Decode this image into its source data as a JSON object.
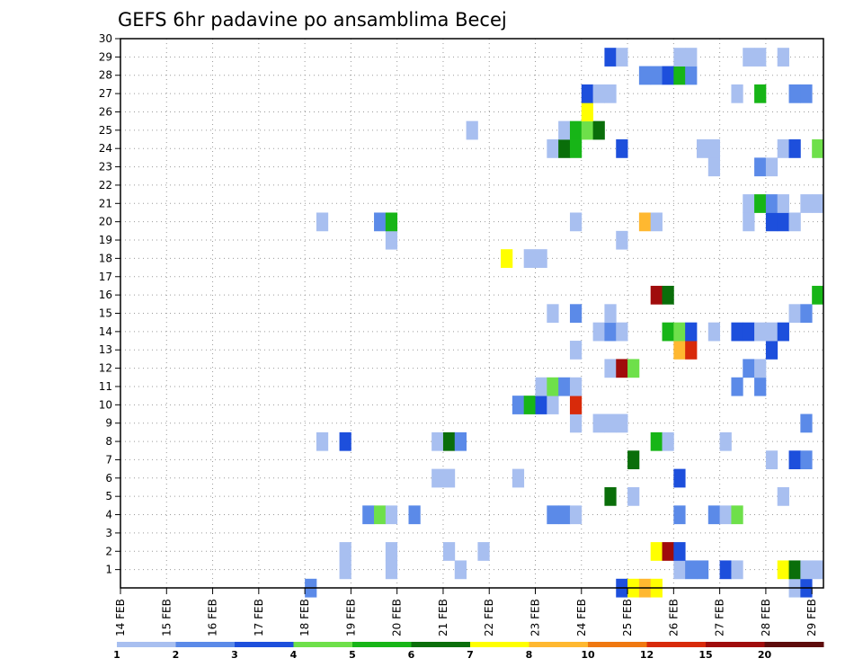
{
  "chart_data": {
    "type": "heatmap",
    "title": "GEFS 6hr padavine po ansamblima Becej",
    "xlabel": "",
    "ylabel": "",
    "x_labels": [
      "14 FEB",
      "15 FEB",
      "16 FEB",
      "17 FEB",
      "18 FEB",
      "19 FEB",
      "20 FEB",
      "21 FEB",
      "22 FEB",
      "23 FEB",
      "24 FEB",
      "25 FEB",
      "26 FEB",
      "27 FEB",
      "28 FEB",
      "29 FEB"
    ],
    "y_labels": [
      "1",
      "2",
      "3",
      "4",
      "5",
      "6",
      "7",
      "8",
      "9",
      "10",
      "11",
      "12",
      "13",
      "14",
      "15",
      "16",
      "17",
      "18",
      "19",
      "20",
      "21",
      "22",
      "23",
      "24",
      "25",
      "26",
      "27",
      "28",
      "29",
      "30"
    ],
    "xlim": [
      0,
      61
    ],
    "ylim": [
      0,
      30
    ],
    "x_unit": "6h steps since 14 FEB 00z",
    "grid": true,
    "colorbar": {
      "labels": [
        "1",
        "2",
        "3",
        "4",
        "5",
        "6",
        "7",
        "8",
        "10",
        "12",
        "15",
        "20"
      ],
      "colors": [
        "#a8bff0",
        "#5b8ae8",
        "#1d4fdc",
        "#6ee04a",
        "#17b517",
        "#0a6e0a",
        "#ffff00",
        "#ffb830",
        "#f07810",
        "#d82a0a",
        "#a00c0c",
        "#5e0c0c"
      ]
    },
    "cells": [
      {
        "x": 16.5,
        "y": 0,
        "c": 1
      },
      {
        "x": 43.5,
        "y": 0,
        "c": 2
      },
      {
        "x": 44.5,
        "y": 0,
        "c": 6
      },
      {
        "x": 45.5,
        "y": 0,
        "c": 7
      },
      {
        "x": 46.5,
        "y": 0,
        "c": 6
      },
      {
        "x": 58.5,
        "y": 0,
        "c": 0
      },
      {
        "x": 59.5,
        "y": 0,
        "c": 2
      },
      {
        "x": 19.5,
        "y": 1,
        "c": 0
      },
      {
        "x": 23.5,
        "y": 1,
        "c": 0
      },
      {
        "x": 29.5,
        "y": 1,
        "c": 0
      },
      {
        "x": 48.5,
        "y": 1,
        "c": 0
      },
      {
        "x": 49.5,
        "y": 1,
        "c": 1
      },
      {
        "x": 50.5,
        "y": 1,
        "c": 1
      },
      {
        "x": 52.5,
        "y": 1,
        "c": 2
      },
      {
        "x": 53.5,
        "y": 1,
        "c": 0
      },
      {
        "x": 57.5,
        "y": 1,
        "c": 6
      },
      {
        "x": 58.5,
        "y": 1,
        "c": 5
      },
      {
        "x": 59.5,
        "y": 1,
        "c": 0
      },
      {
        "x": 60.5,
        "y": 1,
        "c": 0
      },
      {
        "x": 19.5,
        "y": 2,
        "c": 0
      },
      {
        "x": 23.5,
        "y": 2,
        "c": 0
      },
      {
        "x": 28.5,
        "y": 2,
        "c": 0
      },
      {
        "x": 31.5,
        "y": 2,
        "c": 0
      },
      {
        "x": 46.5,
        "y": 2,
        "c": 6
      },
      {
        "x": 47.5,
        "y": 2,
        "c": 10
      },
      {
        "x": 48.5,
        "y": 2,
        "c": 2
      },
      {
        "x": 21.5,
        "y": 4,
        "c": 1
      },
      {
        "x": 22.5,
        "y": 4,
        "c": 3
      },
      {
        "x": 23.5,
        "y": 4,
        "c": 0
      },
      {
        "x": 25.5,
        "y": 4,
        "c": 1
      },
      {
        "x": 37.5,
        "y": 4,
        "c": 1
      },
      {
        "x": 38.5,
        "y": 4,
        "c": 1
      },
      {
        "x": 39.5,
        "y": 4,
        "c": 0
      },
      {
        "x": 48.5,
        "y": 4,
        "c": 1
      },
      {
        "x": 51.5,
        "y": 4,
        "c": 1
      },
      {
        "x": 52.5,
        "y": 4,
        "c": 0
      },
      {
        "x": 53.5,
        "y": 4,
        "c": 3
      },
      {
        "x": 42.5,
        "y": 5,
        "c": 5
      },
      {
        "x": 44.5,
        "y": 5,
        "c": 0
      },
      {
        "x": 57.5,
        "y": 5,
        "c": 0
      },
      {
        "x": 27.5,
        "y": 6,
        "c": 0
      },
      {
        "x": 28.5,
        "y": 6,
        "c": 0
      },
      {
        "x": 34.5,
        "y": 6,
        "c": 0
      },
      {
        "x": 48.5,
        "y": 6,
        "c": 2
      },
      {
        "x": 44.5,
        "y": 7,
        "c": 5
      },
      {
        "x": 56.5,
        "y": 7,
        "c": 0
      },
      {
        "x": 58.5,
        "y": 7,
        "c": 2
      },
      {
        "x": 59.5,
        "y": 7,
        "c": 1
      },
      {
        "x": 17.5,
        "y": 8,
        "c": 0
      },
      {
        "x": 19.5,
        "y": 8,
        "c": 2
      },
      {
        "x": 27.5,
        "y": 8,
        "c": 0
      },
      {
        "x": 28.5,
        "y": 8,
        "c": 5
      },
      {
        "x": 29.5,
        "y": 8,
        "c": 1
      },
      {
        "x": 46.5,
        "y": 8,
        "c": 4
      },
      {
        "x": 47.5,
        "y": 8,
        "c": 0
      },
      {
        "x": 52.5,
        "y": 8,
        "c": 0
      },
      {
        "x": 39.5,
        "y": 9,
        "c": 0
      },
      {
        "x": 41.5,
        "y": 9,
        "c": 0
      },
      {
        "x": 42.5,
        "y": 9,
        "c": 0
      },
      {
        "x": 43.5,
        "y": 9,
        "c": 0
      },
      {
        "x": 59.5,
        "y": 9,
        "c": 1
      },
      {
        "x": 34.5,
        "y": 10,
        "c": 1
      },
      {
        "x": 35.5,
        "y": 10,
        "c": 4
      },
      {
        "x": 36.5,
        "y": 10,
        "c": 2
      },
      {
        "x": 37.5,
        "y": 10,
        "c": 0
      },
      {
        "x": 39.5,
        "y": 10,
        "c": 9
      },
      {
        "x": 36.5,
        "y": 11,
        "c": 0
      },
      {
        "x": 37.5,
        "y": 11,
        "c": 3
      },
      {
        "x": 38.5,
        "y": 11,
        "c": 1
      },
      {
        "x": 39.5,
        "y": 11,
        "c": 0
      },
      {
        "x": 53.5,
        "y": 11,
        "c": 1
      },
      {
        "x": 55.5,
        "y": 11,
        "c": 1
      },
      {
        "x": 42.5,
        "y": 12,
        "c": 0
      },
      {
        "x": 43.5,
        "y": 12,
        "c": 10
      },
      {
        "x": 44.5,
        "y": 12,
        "c": 3
      },
      {
        "x": 54.5,
        "y": 12,
        "c": 1
      },
      {
        "x": 55.5,
        "y": 12,
        "c": 0
      },
      {
        "x": 39.5,
        "y": 13,
        "c": 0
      },
      {
        "x": 48.5,
        "y": 13,
        "c": 7
      },
      {
        "x": 49.5,
        "y": 13,
        "c": 9
      },
      {
        "x": 56.5,
        "y": 13,
        "c": 2
      },
      {
        "x": 41.5,
        "y": 14,
        "c": 0
      },
      {
        "x": 42.5,
        "y": 14,
        "c": 1
      },
      {
        "x": 43.5,
        "y": 14,
        "c": 0
      },
      {
        "x": 47.5,
        "y": 14,
        "c": 4
      },
      {
        "x": 48.5,
        "y": 14,
        "c": 3
      },
      {
        "x": 49.5,
        "y": 14,
        "c": 2
      },
      {
        "x": 51.5,
        "y": 14,
        "c": 0
      },
      {
        "x": 53.5,
        "y": 14,
        "c": 2
      },
      {
        "x": 54.5,
        "y": 14,
        "c": 2
      },
      {
        "x": 55.5,
        "y": 14,
        "c": 0
      },
      {
        "x": 56.5,
        "y": 14,
        "c": 0
      },
      {
        "x": 57.5,
        "y": 14,
        "c": 2
      },
      {
        "x": 37.5,
        "y": 15,
        "c": 0
      },
      {
        "x": 39.5,
        "y": 15,
        "c": 1
      },
      {
        "x": 42.5,
        "y": 15,
        "c": 0
      },
      {
        "x": 58.5,
        "y": 15,
        "c": 0
      },
      {
        "x": 59.5,
        "y": 15,
        "c": 1
      },
      {
        "x": 46.5,
        "y": 16,
        "c": 10
      },
      {
        "x": 47.5,
        "y": 16,
        "c": 5
      },
      {
        "x": 60.5,
        "y": 16,
        "c": 4
      },
      {
        "x": 33.5,
        "y": 18,
        "c": 6
      },
      {
        "x": 35.5,
        "y": 18,
        "c": 0
      },
      {
        "x": 36.5,
        "y": 18,
        "c": 0
      },
      {
        "x": 23.5,
        "y": 19,
        "c": 0
      },
      {
        "x": 43.5,
        "y": 19,
        "c": 0
      },
      {
        "x": 17.5,
        "y": 20,
        "c": 0
      },
      {
        "x": 22.5,
        "y": 20,
        "c": 1
      },
      {
        "x": 23.5,
        "y": 20,
        "c": 4
      },
      {
        "x": 39.5,
        "y": 20,
        "c": 0
      },
      {
        "x": 45.5,
        "y": 20,
        "c": 7
      },
      {
        "x": 46.5,
        "y": 20,
        "c": 0
      },
      {
        "x": 54.5,
        "y": 20,
        "c": 0
      },
      {
        "x": 56.5,
        "y": 20,
        "c": 2
      },
      {
        "x": 57.5,
        "y": 20,
        "c": 2
      },
      {
        "x": 58.5,
        "y": 20,
        "c": 0
      },
      {
        "x": 54.5,
        "y": 21,
        "c": 0
      },
      {
        "x": 55.5,
        "y": 21,
        "c": 4
      },
      {
        "x": 56.5,
        "y": 21,
        "c": 1
      },
      {
        "x": 57.5,
        "y": 21,
        "c": 0
      },
      {
        "x": 59.5,
        "y": 21,
        "c": 0
      },
      {
        "x": 60.5,
        "y": 21,
        "c": 0
      },
      {
        "x": 51.5,
        "y": 23,
        "c": 0
      },
      {
        "x": 55.5,
        "y": 23,
        "c": 1
      },
      {
        "x": 56.5,
        "y": 23,
        "c": 0
      },
      {
        "x": 37.5,
        "y": 24,
        "c": 0
      },
      {
        "x": 38.5,
        "y": 24,
        "c": 5
      },
      {
        "x": 39.5,
        "y": 24,
        "c": 4
      },
      {
        "x": 43.5,
        "y": 24,
        "c": 2
      },
      {
        "x": 50.5,
        "y": 24,
        "c": 0
      },
      {
        "x": 51.5,
        "y": 24,
        "c": 0
      },
      {
        "x": 57.5,
        "y": 24,
        "c": 0
      },
      {
        "x": 58.5,
        "y": 24,
        "c": 2
      },
      {
        "x": 60.5,
        "y": 24,
        "c": 3
      },
      {
        "x": 30.5,
        "y": 25,
        "c": 0
      },
      {
        "x": 38.5,
        "y": 25,
        "c": 0
      },
      {
        "x": 39.5,
        "y": 25,
        "c": 4
      },
      {
        "x": 40.5,
        "y": 25,
        "c": 3
      },
      {
        "x": 41.5,
        "y": 25,
        "c": 5
      },
      {
        "x": 40.5,
        "y": 26,
        "c": 6
      },
      {
        "x": 40.5,
        "y": 27,
        "c": 2
      },
      {
        "x": 41.5,
        "y": 27,
        "c": 0
      },
      {
        "x": 42.5,
        "y": 27,
        "c": 0
      },
      {
        "x": 53.5,
        "y": 27,
        "c": 0
      },
      {
        "x": 55.5,
        "y": 27,
        "c": 4
      },
      {
        "x": 58.5,
        "y": 27,
        "c": 1
      },
      {
        "x": 59.5,
        "y": 27,
        "c": 1
      },
      {
        "x": 45.5,
        "y": 28,
        "c": 1
      },
      {
        "x": 46.5,
        "y": 28,
        "c": 1
      },
      {
        "x": 47.5,
        "y": 28,
        "c": 2
      },
      {
        "x": 48.5,
        "y": 28,
        "c": 4
      },
      {
        "x": 49.5,
        "y": 28,
        "c": 1
      },
      {
        "x": 42.5,
        "y": 29,
        "c": 2
      },
      {
        "x": 43.5,
        "y": 29,
        "c": 0
      },
      {
        "x": 48.5,
        "y": 29,
        "c": 0
      },
      {
        "x": 49.5,
        "y": 29,
        "c": 0
      },
      {
        "x": 54.5,
        "y": 29,
        "c": 0
      },
      {
        "x": 55.5,
        "y": 29,
        "c": 0
      },
      {
        "x": 57.5,
        "y": 29,
        "c": 0
      }
    ]
  }
}
